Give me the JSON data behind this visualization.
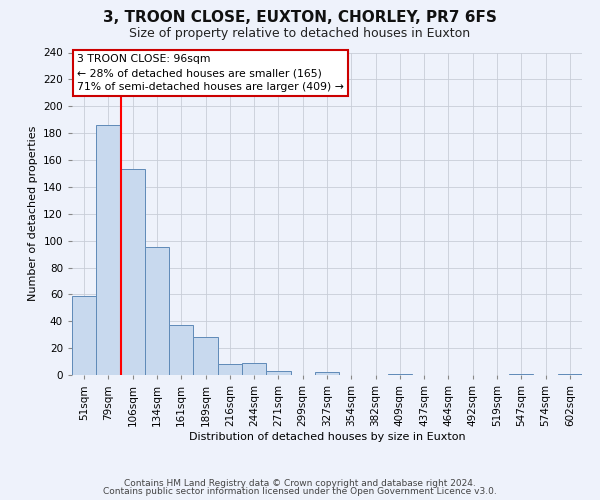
{
  "title": "3, TROON CLOSE, EUXTON, CHORLEY, PR7 6FS",
  "subtitle": "Size of property relative to detached houses in Euxton",
  "xlabel": "Distribution of detached houses by size in Euxton",
  "ylabel": "Number of detached properties",
  "bar_labels": [
    "51sqm",
    "79sqm",
    "106sqm",
    "134sqm",
    "161sqm",
    "189sqm",
    "216sqm",
    "244sqm",
    "271sqm",
    "299sqm",
    "327sqm",
    "354sqm",
    "382sqm",
    "409sqm",
    "437sqm",
    "464sqm",
    "492sqm",
    "519sqm",
    "547sqm",
    "574sqm",
    "602sqm"
  ],
  "bar_values": [
    59,
    186,
    153,
    95,
    37,
    28,
    8,
    9,
    3,
    0,
    2,
    0,
    0,
    1,
    0,
    0,
    0,
    0,
    1,
    0,
    1
  ],
  "bar_color": "#c8d9ee",
  "bar_edge_color": "#5f8ab8",
  "ylim": [
    0,
    240
  ],
  "yticks": [
    0,
    20,
    40,
    60,
    80,
    100,
    120,
    140,
    160,
    180,
    200,
    220,
    240
  ],
  "redline_index": 2,
  "annotation_line1": "3 TROON CLOSE: 96sqm",
  "annotation_line2": "← 28% of detached houses are smaller (165)",
  "annotation_line3": "71% of semi-detached houses are larger (409) →",
  "annotation_box_color": "#ffffff",
  "annotation_box_edge": "#cc0000",
  "footer1": "Contains HM Land Registry data © Crown copyright and database right 2024.",
  "footer2": "Contains public sector information licensed under the Open Government Licence v3.0.",
  "background_color": "#eef2fb",
  "grid_color": "#c8cdd8",
  "title_fontsize": 11,
  "subtitle_fontsize": 9,
  "axis_label_fontsize": 8,
  "tick_fontsize": 7.5,
  "footer_fontsize": 6.5
}
